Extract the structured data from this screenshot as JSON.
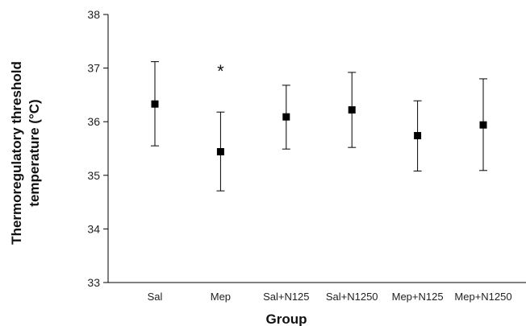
{
  "chart_data": {
    "type": "scatter",
    "title": "",
    "xlabel": "Group",
    "ylabel_lines": [
      "Thermoregulatory threshold",
      "temperature (°C)"
    ],
    "ylim": [
      33,
      38
    ],
    "yticks": [
      33,
      34,
      35,
      36,
      37,
      38
    ],
    "categories": [
      "Sal",
      "Mep",
      "Sal+N125",
      "Sal+N1250",
      "Mep+N125",
      "Mep+N1250"
    ],
    "means": [
      36.33,
      35.44,
      36.09,
      36.22,
      35.74,
      35.94
    ],
    "upper": [
      37.12,
      36.18,
      36.68,
      36.92,
      36.39,
      36.8
    ],
    "lower": [
      35.55,
      34.71,
      35.49,
      35.52,
      35.08,
      35.09
    ],
    "annotations": [
      {
        "category": "Mep",
        "text": "*",
        "y": 36.98
      }
    ],
    "grid": false,
    "marker_color": "#000000"
  }
}
